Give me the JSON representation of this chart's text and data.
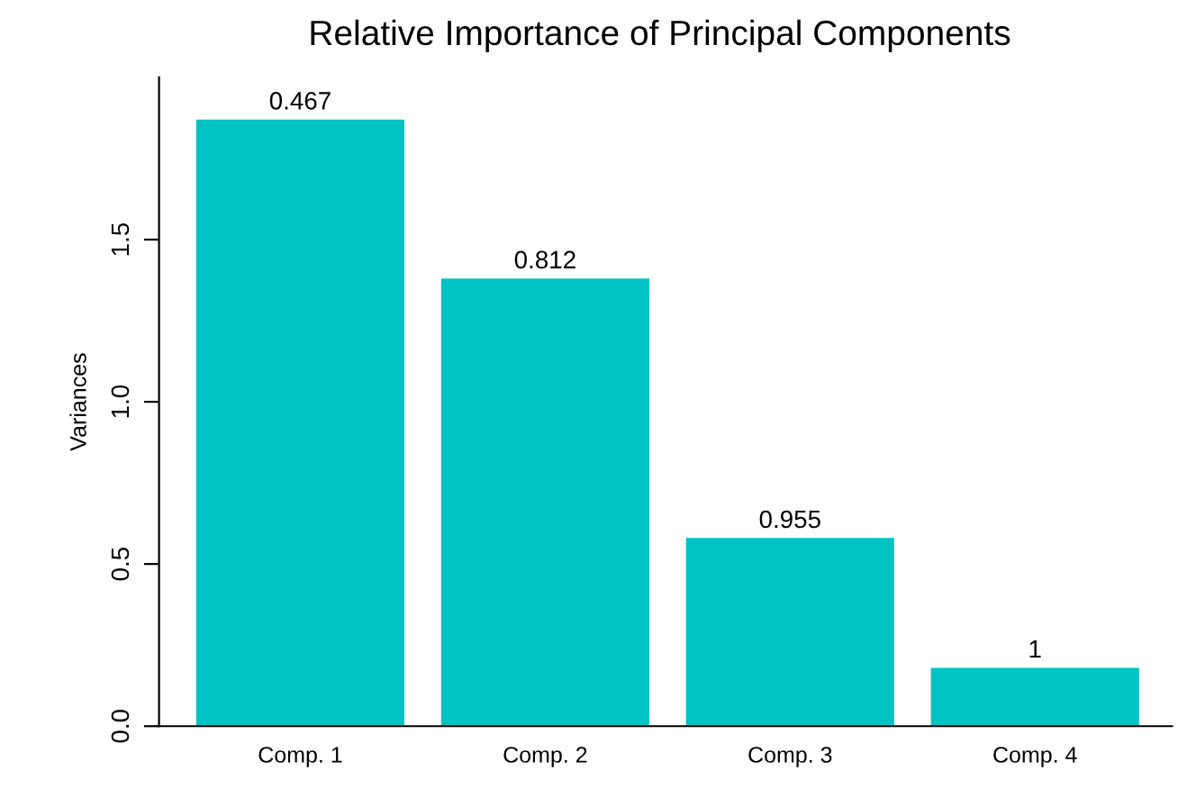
{
  "chart_data": {
    "type": "bar",
    "title": "Relative Importance of Principal Components",
    "ylabel": "Variances",
    "categories": [
      "Comp. 1",
      "Comp. 2",
      "Comp. 3",
      "Comp. 4"
    ],
    "values": [
      1.87,
      1.38,
      0.58,
      0.18
    ],
    "annotations": [
      {
        "text": "0.467",
        "x": "Comp. 1",
        "y": 1.87
      },
      {
        "text": "0.812",
        "x": "Comp. 2",
        "y": 1.38
      },
      {
        "text": "0.955",
        "x": "Comp. 3",
        "y": 0.58
      },
      {
        "text": "1",
        "x": "Comp. 4",
        "y": 0.18
      }
    ],
    "color": "#00c3c3",
    "ylim": [
      0,
      2.0
    ],
    "yticks": [
      {
        "value": 0,
        "label": "0.0"
      },
      {
        "value": 0.5,
        "label": "0.5"
      },
      {
        "value": 1.0,
        "label": "1.0"
      },
      {
        "value": 1.5,
        "label": "1.5"
      }
    ],
    "grid": false
  }
}
